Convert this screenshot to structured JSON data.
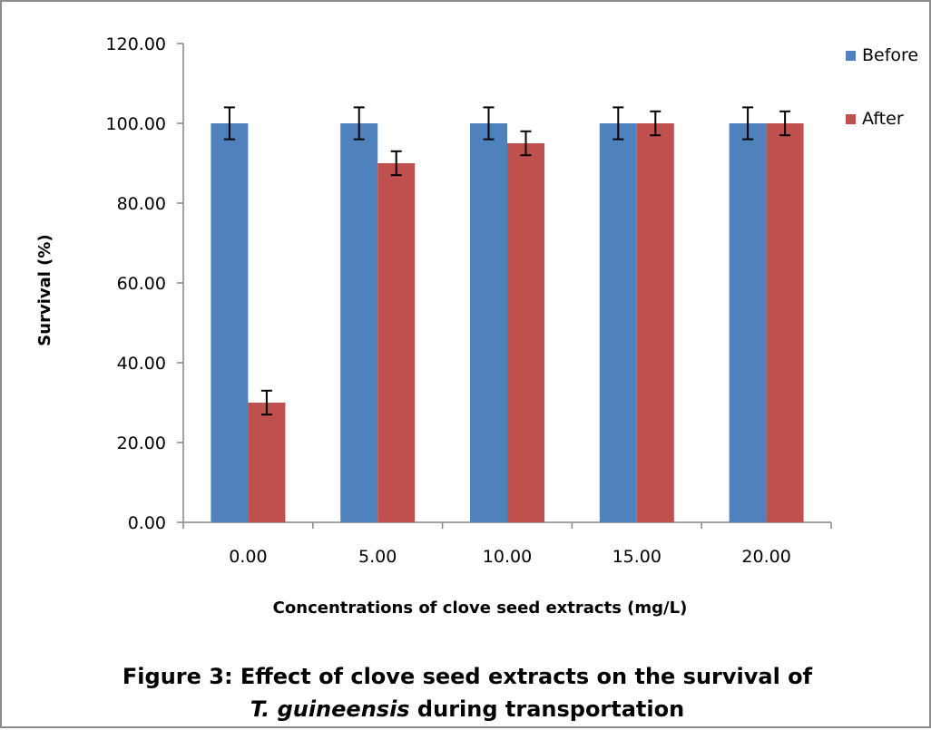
{
  "chart_data": {
    "type": "bar",
    "categories": [
      "0.00",
      "5.00",
      "10.00",
      "15.00",
      "20.00"
    ],
    "series": [
      {
        "name": "Before",
        "color": "#4F81BD",
        "values": [
          100.0,
          100.0,
          100.0,
          100.0,
          100.0
        ],
        "errors": [
          4.0,
          4.0,
          4.0,
          4.0,
          4.0
        ]
      },
      {
        "name": "After",
        "color": "#C0504D",
        "values": [
          30.0,
          90.0,
          95.0,
          100.0,
          100.0
        ],
        "errors": [
          3.0,
          3.0,
          3.0,
          3.0,
          3.0
        ]
      }
    ],
    "xlabel": "Concentrations of clove seed extracts (mg/L)",
    "ylabel": "Survival (%)",
    "ylim": [
      0,
      120
    ],
    "yticks": [
      "0.00",
      "20.00",
      "40.00",
      "60.00",
      "80.00",
      "100.00",
      "120.00"
    ],
    "grid": false,
    "legend_position": "top-right",
    "error_bars": true
  },
  "caption": {
    "line1": "Figure 3: Effect of clove seed extracts  on the survival of",
    "line2_species": "T. guineensis",
    "line2_rest": " during transportation"
  }
}
